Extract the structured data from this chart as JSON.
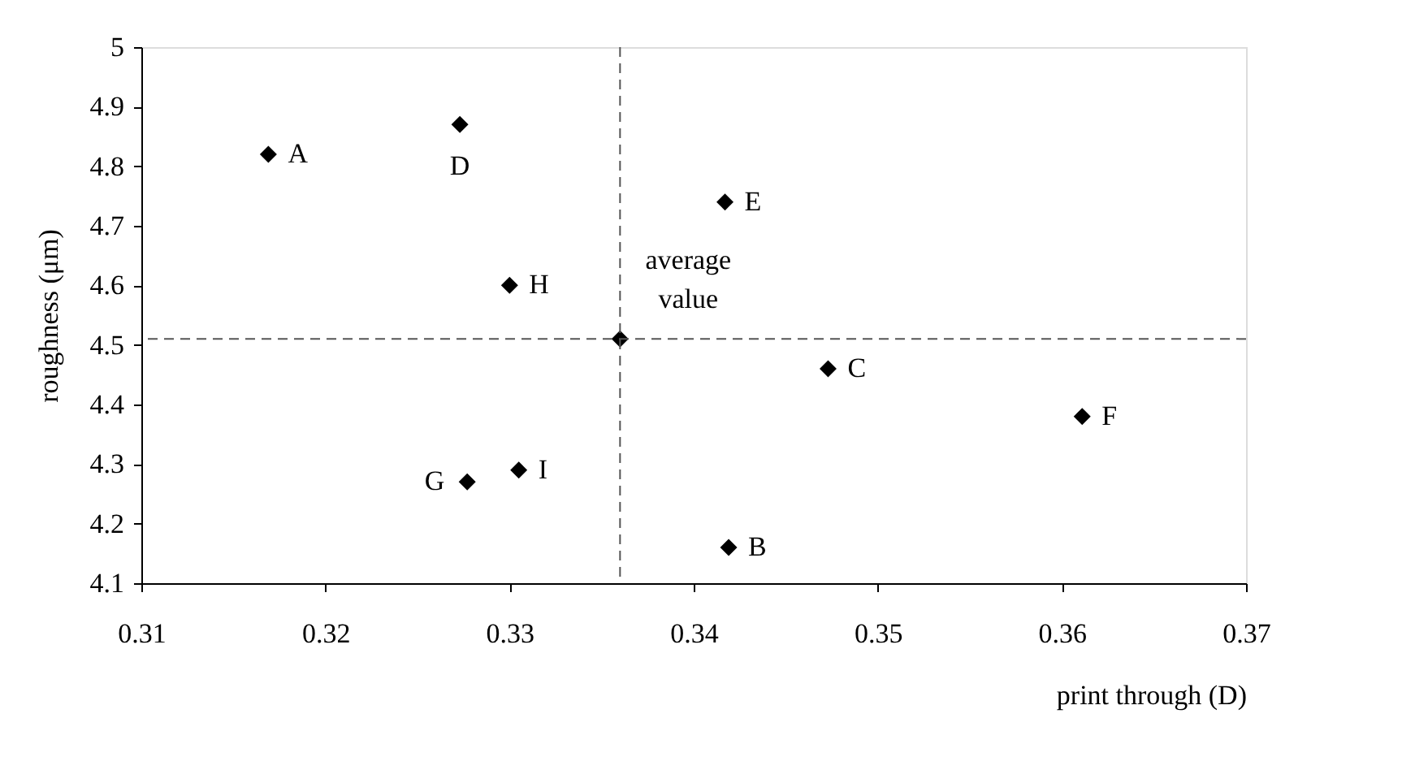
{
  "chart_data": {
    "type": "scatter",
    "xlabel": "print through (D)",
    "ylabel": "roughness (μm)",
    "x": [
      0.3169,
      0.3419,
      0.3473,
      0.3273,
      0.3417,
      0.3611,
      0.3277,
      0.33,
      0.3305,
      0.336
    ],
    "series": [
      {
        "color": "#000000",
        "values": [
          4.82,
          4.16,
          4.46,
          4.87,
          4.74,
          4.38,
          4.27,
          4.6,
          4.29,
          4.51
        ]
      }
    ],
    "xlim": [
      0.31,
      0.37
    ],
    "xticks": [
      0.31,
      0.32,
      0.33,
      0.34,
      0.35,
      0.36,
      0.37
    ],
    "ylim": [
      4.1,
      5
    ],
    "yticks": [
      4.1,
      4.2,
      4.3,
      4.4,
      4.5,
      4.6,
      4.7,
      4.8,
      4.9,
      5
    ],
    "marker": "diamond",
    "grid": false,
    "ref_lines": [
      {
        "axis": "x",
        "value": 0.336,
        "color": "#555555",
        "line_style": "dashed"
      },
      {
        "axis": "y",
        "value": 4.51,
        "color": "#555555",
        "line_style": "dashed"
      }
    ],
    "annotations": [
      {
        "text": "A",
        "x": 0.3169,
        "y": 4.82
      },
      {
        "text": "B",
        "x": 0.3419,
        "y": 4.16
      },
      {
        "text": "C",
        "x": 0.3473,
        "y": 4.46
      },
      {
        "text": "D",
        "x": 0.3273,
        "y": 4.87
      },
      {
        "text": "E",
        "x": 0.3417,
        "y": 4.74
      },
      {
        "text": "F",
        "x": 0.3611,
        "y": 4.38
      },
      {
        "text": "G",
        "x": 0.3277,
        "y": 4.27
      },
      {
        "text": "H",
        "x": 0.33,
        "y": 4.6
      },
      {
        "text": "I",
        "x": 0.3305,
        "y": 4.29
      },
      {
        "text": "average value",
        "x": 0.336,
        "y": 4.51
      }
    ]
  }
}
